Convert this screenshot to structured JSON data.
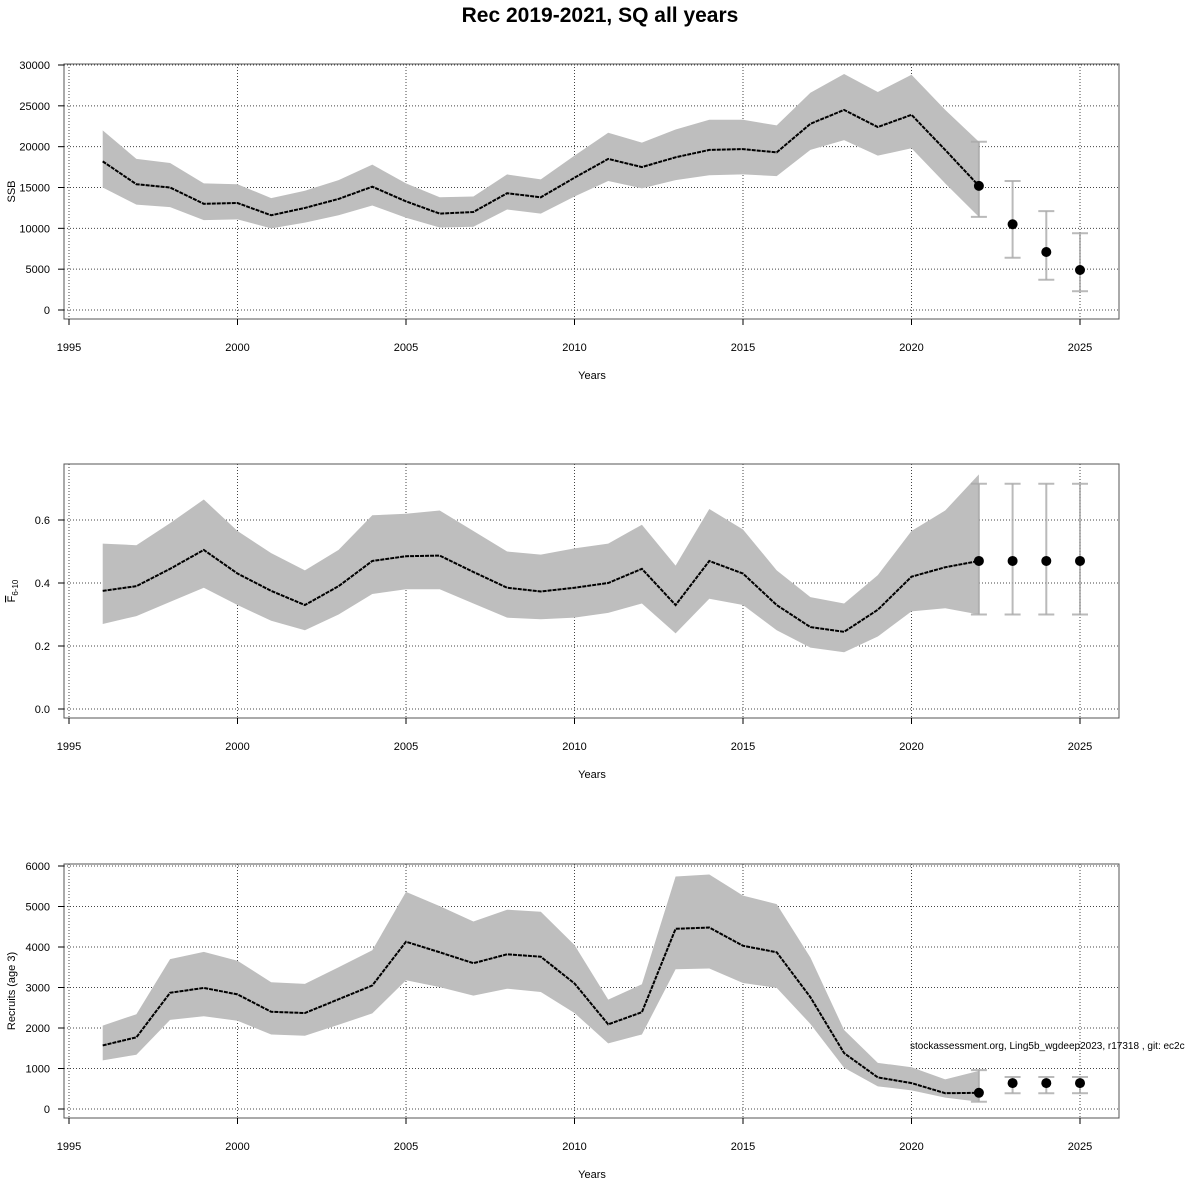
{
  "title": "Rec 2019-2021, SQ all years",
  "footer": "stockassessment.org, Ling5b_wgdeep2023, r17318 , git: ec2c",
  "colors": {
    "band": "#bebebe",
    "line": "#000000",
    "errorbar": "#a9a9a9",
    "grid": "#444444"
  },
  "chart_data": [
    {
      "type": "line",
      "xlabel": "Years",
      "ylabel": "SSB",
      "xlim": [
        1995,
        2025
      ],
      "ylim": [
        0,
        30000
      ],
      "xticks": [
        1995,
        2000,
        2005,
        2010,
        2015,
        2020,
        2025
      ],
      "yticks": [
        0,
        5000,
        10000,
        15000,
        20000,
        25000,
        30000
      ],
      "grid": true,
      "x": [
        1996,
        1997,
        1998,
        1999,
        2000,
        2001,
        2002,
        2003,
        2004,
        2005,
        2006,
        2007,
        2008,
        2009,
        2010,
        2011,
        2012,
        2013,
        2014,
        2015,
        2016,
        2017,
        2018,
        2019,
        2020,
        2021,
        2022
      ],
      "estimate": [
        18200,
        15400,
        15000,
        13000,
        13100,
        11600,
        12500,
        13600,
        15100,
        13300,
        11800,
        12000,
        14300,
        13800,
        16200,
        18500,
        17500,
        18700,
        19600,
        19700,
        19300,
        22800,
        24500,
        22400,
        23900,
        19600,
        15200
      ],
      "lower": [
        15000,
        12900,
        12600,
        11000,
        11100,
        10000,
        10700,
        11600,
        12800,
        11300,
        10100,
        10200,
        12300,
        11800,
        13900,
        15800,
        14900,
        15900,
        16500,
        16600,
        16400,
        19600,
        20800,
        18900,
        19800,
        15500,
        11400
      ],
      "upper": [
        22000,
        18500,
        18000,
        15500,
        15400,
        13700,
        14600,
        15900,
        17800,
        15500,
        13800,
        13900,
        16600,
        16000,
        18900,
        21700,
        20500,
        22100,
        23300,
        23300,
        22600,
        26600,
        28900,
        26700,
        28800,
        24500,
        20600
      ],
      "forecast": {
        "x": [
          2022,
          2023,
          2024,
          2025
        ],
        "estimate": [
          15200,
          10500,
          7100,
          4900
        ],
        "lower": [
          11400,
          6400,
          3700,
          2300
        ],
        "upper": [
          20600,
          15800,
          12100,
          9400
        ]
      }
    },
    {
      "type": "line",
      "xlabel": "Years",
      "ylabel": "F",
      "ylabel_sub": "6-10",
      "xlim": [
        1995,
        2025
      ],
      "ylim": [
        0,
        0.75
      ],
      "xticks": [
        1995,
        2000,
        2005,
        2010,
        2015,
        2020,
        2025
      ],
      "yticks": [
        0.0,
        0.2,
        0.4,
        0.6
      ],
      "ytick_labels": [
        "0.0",
        "0.2",
        "0.4",
        "0.6"
      ],
      "grid": true,
      "x": [
        1996,
        1997,
        1998,
        1999,
        2000,
        2001,
        2002,
        2003,
        2004,
        2005,
        2006,
        2007,
        2008,
        2009,
        2010,
        2011,
        2012,
        2013,
        2014,
        2015,
        2016,
        2017,
        2018,
        2019,
        2020,
        2021,
        2022
      ],
      "estimate": [
        0.375,
        0.39,
        0.445,
        0.505,
        0.43,
        0.375,
        0.33,
        0.39,
        0.47,
        0.485,
        0.487,
        0.435,
        0.385,
        0.373,
        0.385,
        0.4,
        0.445,
        0.33,
        0.47,
        0.43,
        0.33,
        0.26,
        0.245,
        0.315,
        0.42,
        0.45,
        0.47
      ],
      "lower": [
        0.27,
        0.295,
        0.34,
        0.385,
        0.33,
        0.28,
        0.25,
        0.3,
        0.365,
        0.38,
        0.38,
        0.335,
        0.29,
        0.285,
        0.29,
        0.305,
        0.335,
        0.24,
        0.35,
        0.33,
        0.25,
        0.195,
        0.18,
        0.23,
        0.31,
        0.32,
        0.3
      ],
      "upper": [
        0.525,
        0.52,
        0.59,
        0.665,
        0.565,
        0.495,
        0.44,
        0.505,
        0.615,
        0.62,
        0.63,
        0.565,
        0.5,
        0.49,
        0.51,
        0.525,
        0.585,
        0.455,
        0.635,
        0.57,
        0.44,
        0.355,
        0.335,
        0.425,
        0.565,
        0.63,
        0.745
      ],
      "forecast": {
        "x": [
          2022,
          2023,
          2024,
          2025
        ],
        "estimate": [
          0.47,
          0.47,
          0.47,
          0.47
        ],
        "lower": [
          0.3,
          0.3,
          0.3,
          0.3
        ],
        "upper": [
          0.715,
          0.715,
          0.715,
          0.715
        ]
      }
    },
    {
      "type": "line",
      "xlabel": "Years",
      "ylabel": "Recruits (age 3)",
      "xlim": [
        1995,
        2025
      ],
      "ylim": [
        0,
        6000
      ],
      "xticks": [
        1995,
        2000,
        2005,
        2010,
        2015,
        2020,
        2025
      ],
      "yticks": [
        0,
        1000,
        2000,
        3000,
        4000,
        5000,
        6000
      ],
      "grid": true,
      "x": [
        1996,
        1997,
        1998,
        1999,
        2000,
        2001,
        2002,
        2003,
        2004,
        2005,
        2006,
        2007,
        2008,
        2009,
        2010,
        2011,
        2012,
        2013,
        2014,
        2015,
        2016,
        2017,
        2018,
        2019,
        2020,
        2021,
        2022
      ],
      "estimate": [
        1570,
        1770,
        2870,
        2990,
        2830,
        2400,
        2370,
        2710,
        3050,
        4130,
        3870,
        3600,
        3820,
        3760,
        3100,
        2090,
        2390,
        4450,
        4480,
        4030,
        3870,
        2760,
        1380,
        780,
        640,
        390,
        400
      ],
      "lower": [
        1200,
        1340,
        2200,
        2290,
        2180,
        1840,
        1810,
        2080,
        2360,
        3180,
        3010,
        2800,
        2970,
        2890,
        2370,
        1620,
        1840,
        3450,
        3470,
        3110,
        2990,
        2100,
        1020,
        560,
        460,
        280,
        180
      ],
      "upper": [
        2060,
        2340,
        3700,
        3880,
        3660,
        3130,
        3090,
        3500,
        3920,
        5360,
        5010,
        4630,
        4920,
        4870,
        4050,
        2700,
        3080,
        5740,
        5790,
        5270,
        5060,
        3740,
        1950,
        1140,
        1030,
        730,
        940
      ],
      "forecast": {
        "x": [
          2022,
          2023,
          2024,
          2025
        ],
        "estimate": [
          400,
          640,
          640,
          640
        ],
        "lower": [
          180,
          390,
          390,
          390
        ],
        "upper": [
          960,
          790,
          790,
          790
        ]
      }
    }
  ]
}
